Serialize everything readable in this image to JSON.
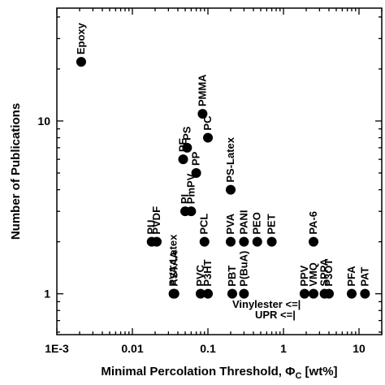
{
  "chart_data": {
    "type": "scatter",
    "xlabel_main": "Minimal Percolation Threshold, ",
    "xlabel_symbol": "Φ",
    "xlabel_sub": "C",
    "xlabel_unit": " [wt%]",
    "ylabel": "Number of Publications",
    "x_scale": "log",
    "y_scale": "log",
    "xlim": [
      0.001,
      20
    ],
    "ylim": [
      0.58,
      45
    ],
    "x_ticks": [
      {
        "value": 0.001,
        "label": "1E-3"
      },
      {
        "value": 0.01,
        "label": "0.01"
      },
      {
        "value": 0.1,
        "label": "0.1"
      },
      {
        "value": 1,
        "label": "1"
      },
      {
        "value": 10,
        "label": "10"
      }
    ],
    "y_ticks": [
      {
        "value": 1,
        "label": "1"
      },
      {
        "value": 10,
        "label": "10"
      }
    ],
    "grid": false,
    "legend": "none",
    "marker_color": "#000000",
    "points": [
      {
        "label": "Epoxy",
        "x": 0.0021,
        "y": 22
      },
      {
        "label": "PMMA",
        "x": 0.085,
        "y": 11
      },
      {
        "label": "PC",
        "x": 0.1,
        "y": 8
      },
      {
        "label": "PS",
        "x": 0.053,
        "y": 7
      },
      {
        "label": "PE",
        "x": 0.047,
        "y": 6
      },
      {
        "label": "PP",
        "x": 0.07,
        "y": 5
      },
      {
        "label": "PS-Latex",
        "x": 0.2,
        "y": 4
      },
      {
        "label": "PI",
        "x": 0.05,
        "y": 3
      },
      {
        "label": "PmPV",
        "x": 0.06,
        "y": 3
      },
      {
        "label": "PU",
        "x": 0.018,
        "y": 2
      },
      {
        "label": "PVDF",
        "x": 0.021,
        "y": 2
      },
      {
        "label": "PCL",
        "x": 0.09,
        "y": 2
      },
      {
        "label": "PVA",
        "x": 0.2,
        "y": 2
      },
      {
        "label": "PANI",
        "x": 0.3,
        "y": 2
      },
      {
        "label": "PEO",
        "x": 0.45,
        "y": 2
      },
      {
        "label": "PET",
        "x": 0.7,
        "y": 2
      },
      {
        "label": "PA-6",
        "x": 2.5,
        "y": 2
      },
      {
        "label": "PVA-Latex",
        "x": 0.035,
        "y": 1
      },
      {
        "label": "ASTAA",
        "x": 0.036,
        "y": 1
      },
      {
        "label": "PVC",
        "x": 0.08,
        "y": 1
      },
      {
        "label": "P3HT",
        "x": 0.1,
        "y": 1
      },
      {
        "label": "PBT",
        "x": 0.21,
        "y": 1
      },
      {
        "label": "P(BuA)",
        "x": 0.3,
        "y": 1
      },
      {
        "label": "PPV",
        "x": 1.9,
        "y": 1
      },
      {
        "label": "VMQ",
        "x": 2.5,
        "y": 1
      },
      {
        "label": "SPPA",
        "x": 3.5,
        "y": 1
      },
      {
        "label": "P3OT",
        "x": 4,
        "y": 1
      },
      {
        "label": "PFA",
        "x": 8,
        "y": 1
      },
      {
        "label": "PAT",
        "x": 12,
        "y": 1
      }
    ],
    "annotations": [
      {
        "text": "Vinylester <=|",
        "x": 0.21,
        "y": 0.83
      },
      {
        "text": "UPR <=|",
        "x": 0.42,
        "y": 0.72
      }
    ]
  }
}
